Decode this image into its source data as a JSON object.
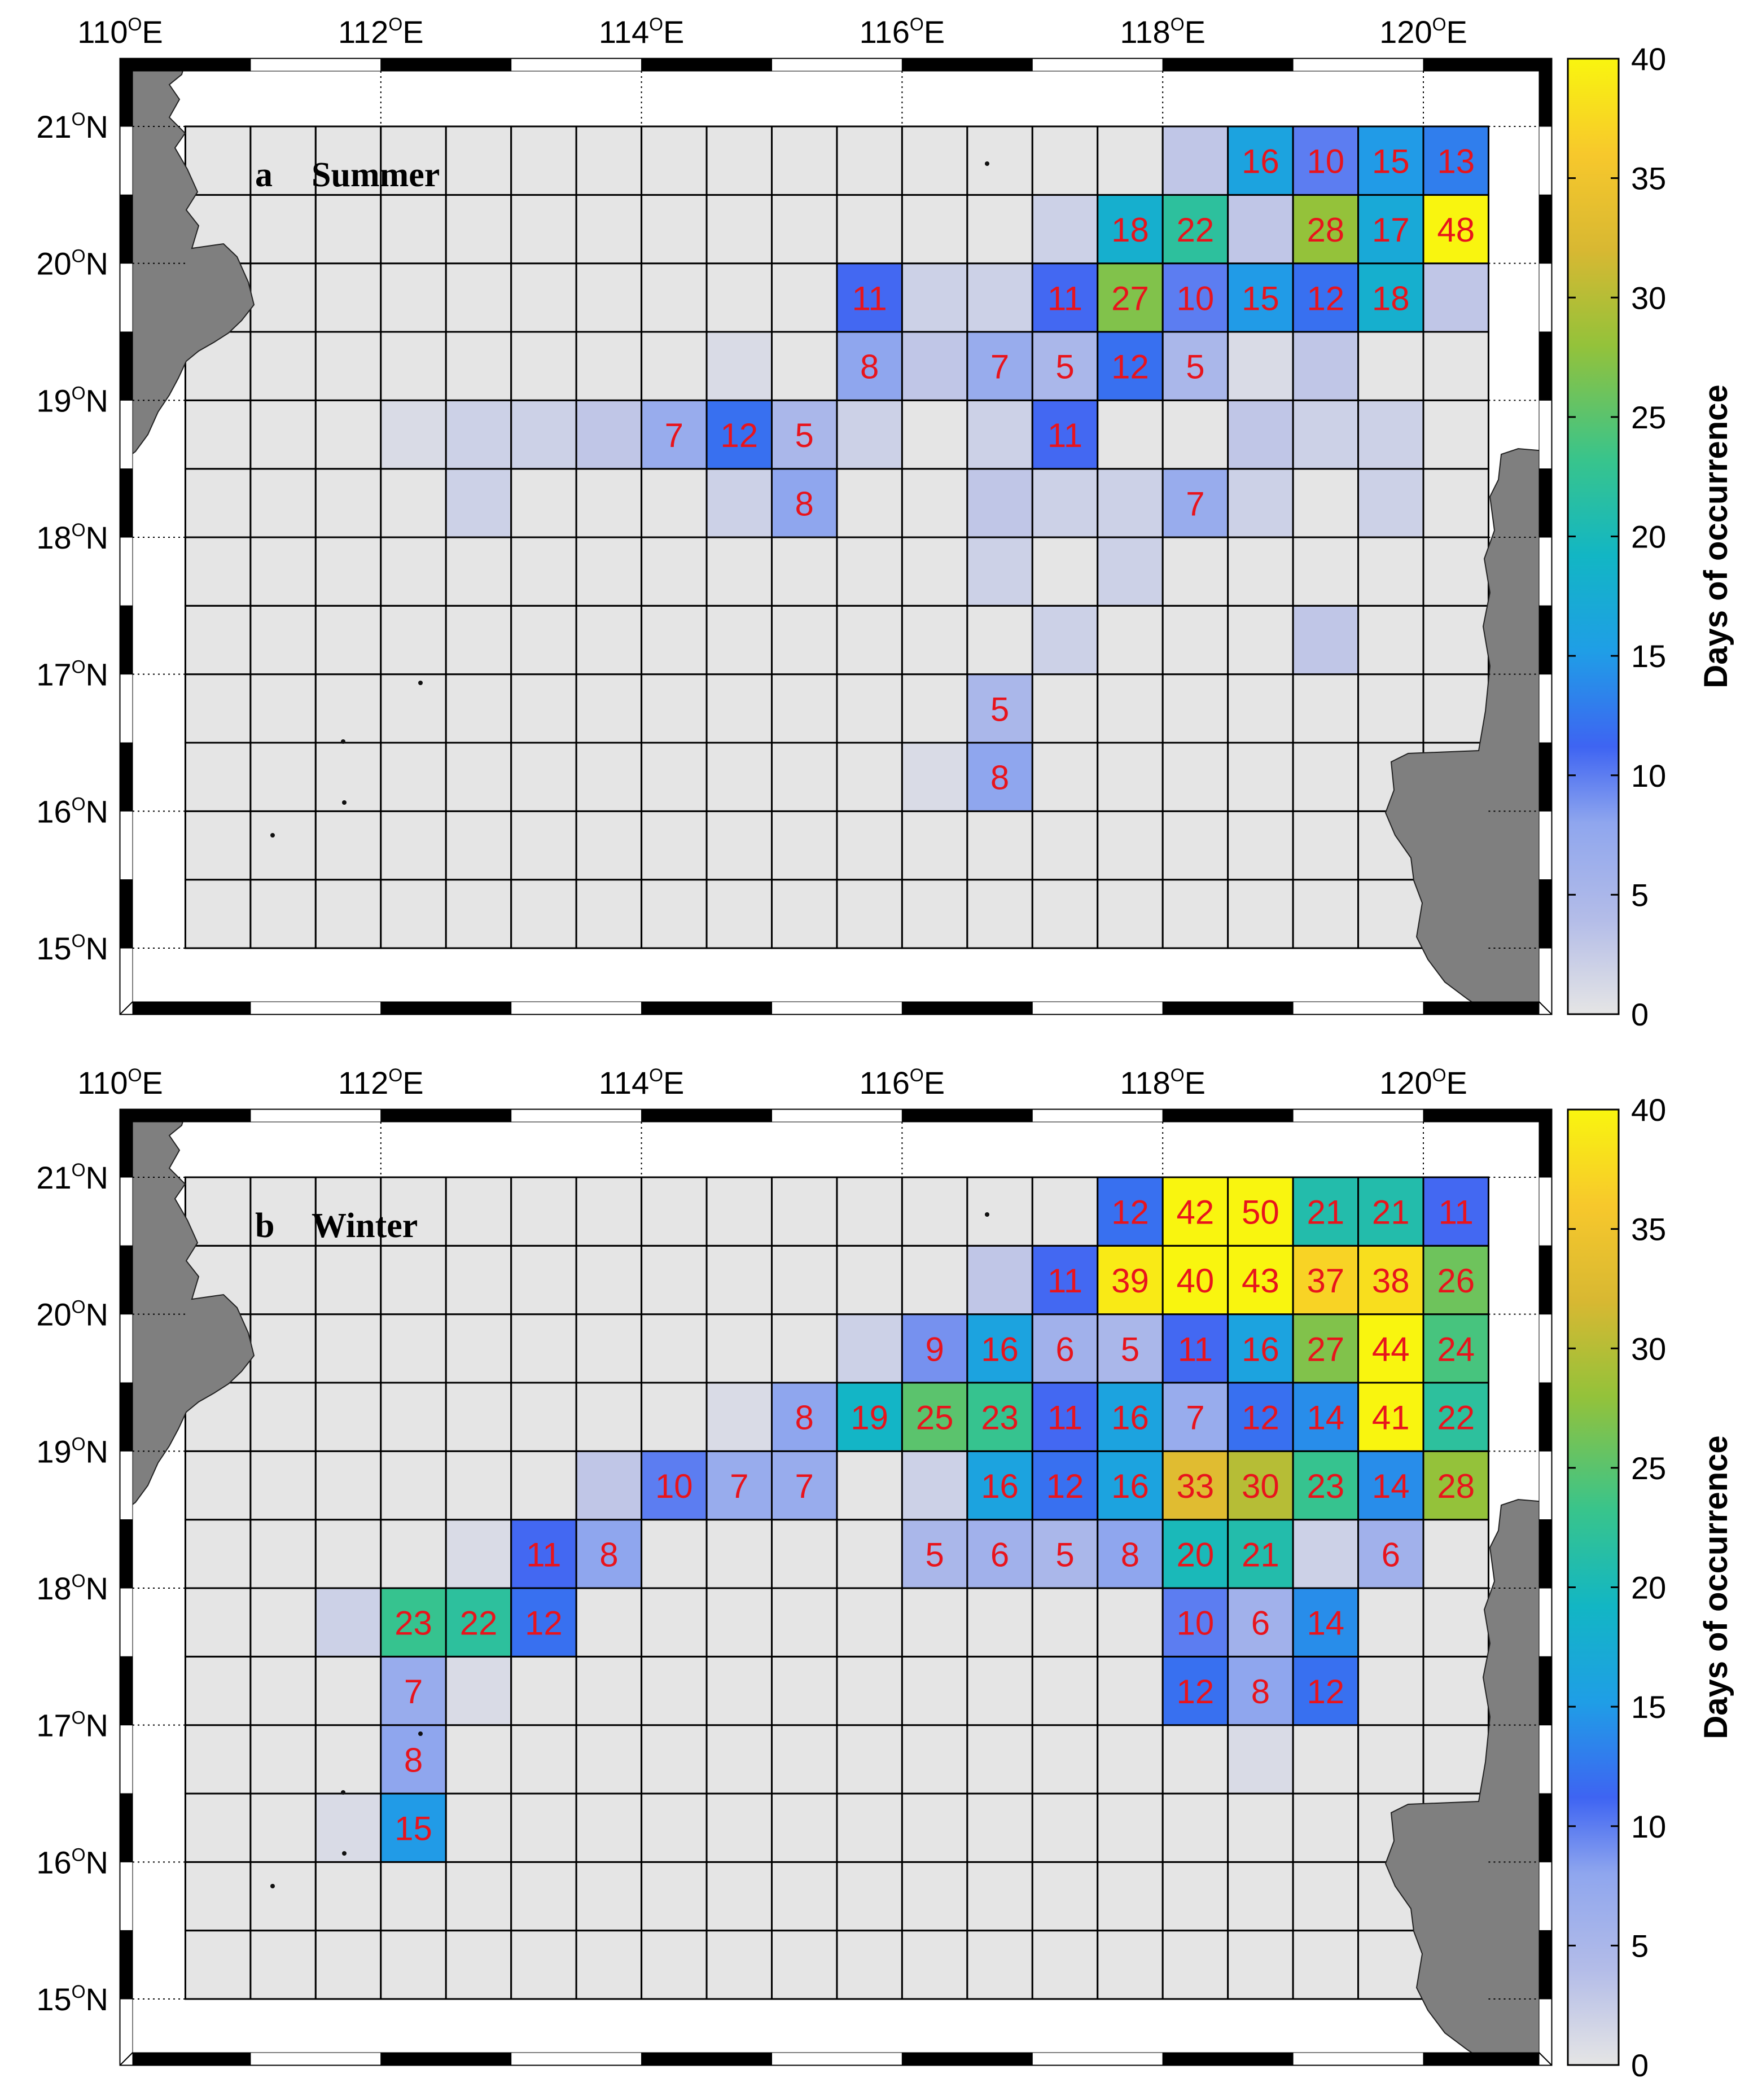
{
  "figure": {
    "colorbar_label": "Days of occurrence",
    "colorbar_ticks": [
      "0",
      "5",
      "10",
      "15",
      "20",
      "25",
      "30",
      "35",
      "40"
    ],
    "colorbar_range": [
      0,
      40
    ],
    "colormap": [
      "#e5e5e5",
      "#b3bce8",
      "#8fa6ee",
      "#3e64f2",
      "#1f9ee6",
      "#12b6c4",
      "#38c48c",
      "#94c23a",
      "#d8b832",
      "#f7c82c",
      "#f9f50f"
    ],
    "land_color": "#7f7f7f",
    "grid_cell_color": "#e5e5e5",
    "value_text_color": "#e8141c"
  },
  "lon_ticks": [
    "110",
    "112",
    "114",
    "116",
    "118",
    "120"
  ],
  "lat_ticks": [
    "15",
    "16",
    "17",
    "18",
    "19",
    "20",
    "21"
  ],
  "deg_symbol": "O",
  "east_suffix": "E",
  "north_suffix": "N",
  "grid": {
    "lon_range": [
      110.5,
      120.5
    ],
    "lat_range": [
      15.0,
      21.0
    ],
    "cell_size_deg": 0.5
  },
  "panels": [
    {
      "letter": "a",
      "season": "Summer",
      "cells": [
        {
          "lon": 118.0,
          "lat": 20.5,
          "v": 3
        },
        {
          "lon": 118.5,
          "lat": 20.5,
          "v": 16,
          "label": "16"
        },
        {
          "lon": 119.0,
          "lat": 20.5,
          "v": 10,
          "label": "10"
        },
        {
          "lon": 119.5,
          "lat": 20.5,
          "v": 15,
          "label": "15"
        },
        {
          "lon": 120.0,
          "lat": 20.5,
          "v": 13,
          "label": "13"
        },
        {
          "lon": 117.0,
          "lat": 20.0,
          "v": 2
        },
        {
          "lon": 117.5,
          "lat": 20.0,
          "v": 18,
          "label": "18"
        },
        {
          "lon": 118.0,
          "lat": 20.0,
          "v": 22,
          "label": "22"
        },
        {
          "lon": 118.5,
          "lat": 20.0,
          "v": 3
        },
        {
          "lon": 119.0,
          "lat": 20.0,
          "v": 28,
          "label": "28"
        },
        {
          "lon": 119.5,
          "lat": 20.0,
          "v": 17,
          "label": "17"
        },
        {
          "lon": 120.0,
          "lat": 20.0,
          "v": 48,
          "label": "48"
        },
        {
          "lon": 115.5,
          "lat": 19.5,
          "v": 11,
          "label": "11"
        },
        {
          "lon": 116.0,
          "lat": 19.5,
          "v": 2
        },
        {
          "lon": 116.5,
          "lat": 19.5,
          "v": 2
        },
        {
          "lon": 117.0,
          "lat": 19.5,
          "v": 11,
          "label": "11"
        },
        {
          "lon": 117.5,
          "lat": 19.5,
          "v": 27,
          "label": "27"
        },
        {
          "lon": 118.0,
          "lat": 19.5,
          "v": 10,
          "label": "10"
        },
        {
          "lon": 118.5,
          "lat": 19.5,
          "v": 15,
          "label": "15"
        },
        {
          "lon": 119.0,
          "lat": 19.5,
          "v": 12,
          "label": "12"
        },
        {
          "lon": 119.5,
          "lat": 19.5,
          "v": 18,
          "label": "18"
        },
        {
          "lon": 120.0,
          "lat": 19.5,
          "v": 3
        },
        {
          "lon": 114.5,
          "lat": 19.0,
          "v": 1
        },
        {
          "lon": 115.5,
          "lat": 19.0,
          "v": 8,
          "label": "8"
        },
        {
          "lon": 116.0,
          "lat": 19.0,
          "v": 3
        },
        {
          "lon": 116.5,
          "lat": 19.0,
          "v": 7,
          "label": "7"
        },
        {
          "lon": 117.0,
          "lat": 19.0,
          "v": 5,
          "label": "5"
        },
        {
          "lon": 117.5,
          "lat": 19.0,
          "v": 12,
          "label": "12"
        },
        {
          "lon": 118.0,
          "lat": 19.0,
          "v": 5,
          "label": "5"
        },
        {
          "lon": 118.5,
          "lat": 19.0,
          "v": 1
        },
        {
          "lon": 119.0,
          "lat": 19.0,
          "v": 3
        },
        {
          "lon": 112.0,
          "lat": 18.5,
          "v": 1
        },
        {
          "lon": 112.5,
          "lat": 18.5,
          "v": 2
        },
        {
          "lon": 113.0,
          "lat": 18.5,
          "v": 2
        },
        {
          "lon": 113.5,
          "lat": 18.5,
          "v": 3
        },
        {
          "lon": 114.0,
          "lat": 18.5,
          "v": 7,
          "label": "7"
        },
        {
          "lon": 114.5,
          "lat": 18.5,
          "v": 12,
          "label": "12"
        },
        {
          "lon": 115.0,
          "lat": 18.5,
          "v": 5,
          "label": "5"
        },
        {
          "lon": 115.5,
          "lat": 18.5,
          "v": 2
        },
        {
          "lon": 116.5,
          "lat": 18.5,
          "v": 2
        },
        {
          "lon": 117.0,
          "lat": 18.5,
          "v": 11,
          "label": "11"
        },
        {
          "lon": 118.5,
          "lat": 18.5,
          "v": 3
        },
        {
          "lon": 119.0,
          "lat": 18.5,
          "v": 2
        },
        {
          "lon": 119.5,
          "lat": 18.5,
          "v": 2
        },
        {
          "lon": 112.5,
          "lat": 18.0,
          "v": 2
        },
        {
          "lon": 114.5,
          "lat": 18.0,
          "v": 2
        },
        {
          "lon": 115.0,
          "lat": 18.0,
          "v": 8,
          "label": "8"
        },
        {
          "lon": 116.5,
          "lat": 18.0,
          "v": 3
        },
        {
          "lon": 117.0,
          "lat": 18.0,
          "v": 2
        },
        {
          "lon": 117.5,
          "lat": 18.0,
          "v": 2
        },
        {
          "lon": 118.0,
          "lat": 18.0,
          "v": 7,
          "label": "7"
        },
        {
          "lon": 118.5,
          "lat": 18.0,
          "v": 2
        },
        {
          "lon": 119.5,
          "lat": 18.0,
          "v": 2
        },
        {
          "lon": 116.5,
          "lat": 17.5,
          "v": 2
        },
        {
          "lon": 117.5,
          "lat": 17.5,
          "v": 2
        },
        {
          "lon": 117.0,
          "lat": 17.0,
          "v": 2
        },
        {
          "lon": 119.0,
          "lat": 17.0,
          "v": 3
        },
        {
          "lon": 116.5,
          "lat": 16.5,
          "v": 5,
          "label": "5"
        },
        {
          "lon": 116.0,
          "lat": 16.0,
          "v": 1
        },
        {
          "lon": 116.5,
          "lat": 16.0,
          "v": 8,
          "label": "8"
        }
      ]
    },
    {
      "letter": "b",
      "season": "Winter",
      "cells": [
        {
          "lon": 117.5,
          "lat": 20.5,
          "v": 12,
          "label": "12"
        },
        {
          "lon": 118.0,
          "lat": 20.5,
          "v": 42,
          "label": "42"
        },
        {
          "lon": 118.5,
          "lat": 20.5,
          "v": 50,
          "label": "50"
        },
        {
          "lon": 119.0,
          "lat": 20.5,
          "v": 21,
          "label": "21"
        },
        {
          "lon": 119.5,
          "lat": 20.5,
          "v": 21,
          "label": "21"
        },
        {
          "lon": 120.0,
          "lat": 20.5,
          "v": 11,
          "label": "11"
        },
        {
          "lon": 116.5,
          "lat": 20.0,
          "v": 3
        },
        {
          "lon": 117.0,
          "lat": 20.0,
          "v": 11,
          "label": "11"
        },
        {
          "lon": 117.5,
          "lat": 20.0,
          "v": 39,
          "label": "39"
        },
        {
          "lon": 118.0,
          "lat": 20.0,
          "v": 40,
          "label": "40"
        },
        {
          "lon": 118.5,
          "lat": 20.0,
          "v": 43,
          "label": "43"
        },
        {
          "lon": 119.0,
          "lat": 20.0,
          "v": 37,
          "label": "37"
        },
        {
          "lon": 119.5,
          "lat": 20.0,
          "v": 38,
          "label": "38"
        },
        {
          "lon": 120.0,
          "lat": 20.0,
          "v": 26,
          "label": "26"
        },
        {
          "lon": 115.5,
          "lat": 19.5,
          "v": 2
        },
        {
          "lon": 116.0,
          "lat": 19.5,
          "v": 9,
          "label": "9"
        },
        {
          "lon": 116.5,
          "lat": 19.5,
          "v": 16,
          "label": "16"
        },
        {
          "lon": 117.0,
          "lat": 19.5,
          "v": 6,
          "label": "6"
        },
        {
          "lon": 117.5,
          "lat": 19.5,
          "v": 5,
          "label": "5"
        },
        {
          "lon": 118.0,
          "lat": 19.5,
          "v": 11,
          "label": "11"
        },
        {
          "lon": 118.5,
          "lat": 19.5,
          "v": 16,
          "label": "16"
        },
        {
          "lon": 119.0,
          "lat": 19.5,
          "v": 27,
          "label": "27"
        },
        {
          "lon": 119.5,
          "lat": 19.5,
          "v": 44,
          "label": "44"
        },
        {
          "lon": 120.0,
          "lat": 19.5,
          "v": 24,
          "label": "24"
        },
        {
          "lon": 114.5,
          "lat": 19.0,
          "v": 1
        },
        {
          "lon": 115.0,
          "lat": 19.0,
          "v": 8,
          "label": "8"
        },
        {
          "lon": 115.5,
          "lat": 19.0,
          "v": 19,
          "label": "19"
        },
        {
          "lon": 116.0,
          "lat": 19.0,
          "v": 25,
          "label": "25"
        },
        {
          "lon": 116.5,
          "lat": 19.0,
          "v": 23,
          "label": "23"
        },
        {
          "lon": 117.0,
          "lat": 19.0,
          "v": 11,
          "label": "11"
        },
        {
          "lon": 117.5,
          "lat": 19.0,
          "v": 16,
          "label": "16"
        },
        {
          "lon": 118.0,
          "lat": 19.0,
          "v": 7,
          "label": "7"
        },
        {
          "lon": 118.5,
          "lat": 19.0,
          "v": 12,
          "label": "12"
        },
        {
          "lon": 119.0,
          "lat": 19.0,
          "v": 14,
          "label": "14"
        },
        {
          "lon": 119.5,
          "lat": 19.0,
          "v": 41,
          "label": "41"
        },
        {
          "lon": 120.0,
          "lat": 19.0,
          "v": 22,
          "label": "22"
        },
        {
          "lon": 113.5,
          "lat": 18.5,
          "v": 3
        },
        {
          "lon": 114.0,
          "lat": 18.5,
          "v": 10,
          "label": "10"
        },
        {
          "lon": 114.5,
          "lat": 18.5,
          "v": 7,
          "label": "7"
        },
        {
          "lon": 115.0,
          "lat": 18.5,
          "v": 7,
          "label": "7"
        },
        {
          "lon": 116.0,
          "lat": 18.5,
          "v": 2
        },
        {
          "lon": 116.5,
          "lat": 18.5,
          "v": 16,
          "label": "16"
        },
        {
          "lon": 117.0,
          "lat": 18.5,
          "v": 12,
          "label": "12"
        },
        {
          "lon": 117.5,
          "lat": 18.5,
          "v": 16,
          "label": "16"
        },
        {
          "lon": 118.0,
          "lat": 18.5,
          "v": 33,
          "label": "33"
        },
        {
          "lon": 118.5,
          "lat": 18.5,
          "v": 30,
          "label": "30"
        },
        {
          "lon": 119.0,
          "lat": 18.5,
          "v": 23,
          "label": "23"
        },
        {
          "lon": 119.5,
          "lat": 18.5,
          "v": 14,
          "label": "14"
        },
        {
          "lon": 120.0,
          "lat": 18.5,
          "v": 28,
          "label": "28"
        },
        {
          "lon": 112.5,
          "lat": 18.0,
          "v": 1
        },
        {
          "lon": 113.0,
          "lat": 18.0,
          "v": 11,
          "label": "11"
        },
        {
          "lon": 113.5,
          "lat": 18.0,
          "v": 8,
          "label": "8"
        },
        {
          "lon": 116.0,
          "lat": 18.0,
          "v": 5,
          "label": "5"
        },
        {
          "lon": 116.5,
          "lat": 18.0,
          "v": 6,
          "label": "6"
        },
        {
          "lon": 117.0,
          "lat": 18.0,
          "v": 5,
          "label": "5"
        },
        {
          "lon": 117.5,
          "lat": 18.0,
          "v": 8,
          "label": "8"
        },
        {
          "lon": 118.0,
          "lat": 18.0,
          "v": 20,
          "label": "20"
        },
        {
          "lon": 118.5,
          "lat": 18.0,
          "v": 21,
          "label": "21"
        },
        {
          "lon": 119.0,
          "lat": 18.0,
          "v": 2
        },
        {
          "lon": 119.5,
          "lat": 18.0,
          "v": 6,
          "label": "6"
        },
        {
          "lon": 111.5,
          "lat": 17.5,
          "v": 2
        },
        {
          "lon": 112.0,
          "lat": 17.5,
          "v": 23,
          "label": "23"
        },
        {
          "lon": 112.5,
          "lat": 17.5,
          "v": 22,
          "label": "22"
        },
        {
          "lon": 113.0,
          "lat": 17.5,
          "v": 12,
          "label": "12"
        },
        {
          "lon": 118.0,
          "lat": 17.5,
          "v": 10,
          "label": "10"
        },
        {
          "lon": 118.5,
          "lat": 17.5,
          "v": 6,
          "label": "6"
        },
        {
          "lon": 119.0,
          "lat": 17.5,
          "v": 14,
          "label": "14"
        },
        {
          "lon": 112.0,
          "lat": 17.0,
          "v": 7,
          "label": "7"
        },
        {
          "lon": 112.5,
          "lat": 17.0,
          "v": 1
        },
        {
          "lon": 118.0,
          "lat": 17.0,
          "v": 12,
          "label": "12"
        },
        {
          "lon": 118.5,
          "lat": 17.0,
          "v": 8,
          "label": "8"
        },
        {
          "lon": 119.0,
          "lat": 17.0,
          "v": 12,
          "label": "12"
        },
        {
          "lon": 112.0,
          "lat": 16.5,
          "v": 8,
          "label": "8"
        },
        {
          "lon": 118.5,
          "lat": 16.5,
          "v": 1
        },
        {
          "lon": 111.5,
          "lat": 16.0,
          "v": 1
        },
        {
          "lon": 112.0,
          "lat": 16.0,
          "v": 15,
          "label": "15"
        }
      ]
    }
  ]
}
